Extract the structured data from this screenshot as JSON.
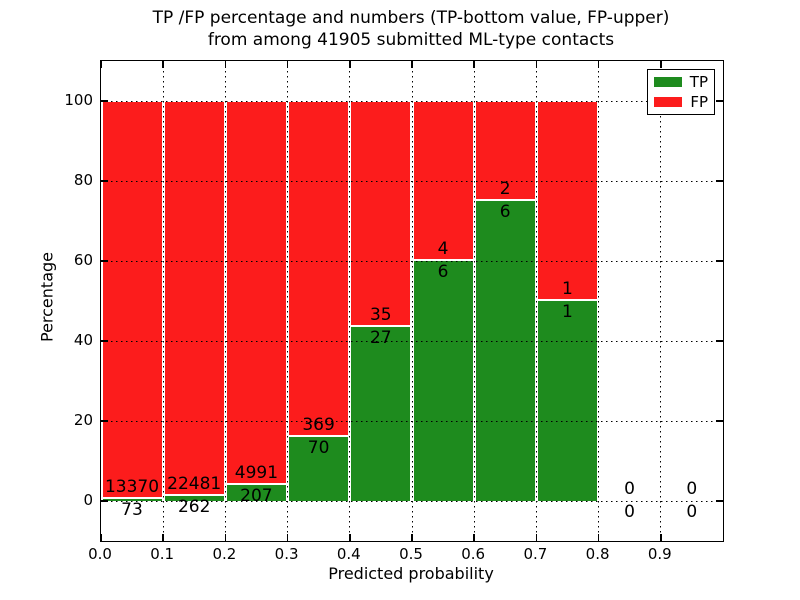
{
  "title": {
    "line1": "TP /FP percentage and numbers (TP-bottom value, FP-upper)",
    "line2": "from among 41905 submitted ML-type contacts"
  },
  "axes": {
    "xlabel": "Predicted probability",
    "ylabel": "Percentage",
    "x_tick_labels": [
      "0.0",
      "0.1",
      "0.2",
      "0.3",
      "0.4",
      "0.5",
      "0.6",
      "0.7",
      "0.8",
      "0.9"
    ],
    "x_tick_values": [
      0.0,
      0.1,
      0.2,
      0.3,
      0.4,
      0.5,
      0.6,
      0.7,
      0.8,
      0.9
    ],
    "y_tick_labels": [
      "0",
      "20",
      "40",
      "60",
      "80",
      "100"
    ],
    "y_tick_values": [
      0,
      20,
      40,
      60,
      80,
      100
    ]
  },
  "colors": {
    "tp": "#1e8b1e",
    "fp": "#fc1c1c",
    "grid": "#000000",
    "background": "#ffffff"
  },
  "legend": {
    "position": "upper right",
    "items": [
      {
        "label": "TP",
        "color_key": "tp"
      },
      {
        "label": "FP",
        "color_key": "fp"
      }
    ]
  },
  "chart_data": {
    "type": "bar",
    "stacked": true,
    "normalized_to_percent": true,
    "title": "TP /FP percentage and numbers (TP-bottom value, FP-upper) from among 41905 submitted ML-type contacts",
    "xlabel": "Predicted probability",
    "ylabel": "Percentage",
    "total_contacts": 41905,
    "bin_starts": [
      0.0,
      0.1,
      0.2,
      0.3,
      0.4,
      0.5,
      0.6,
      0.7,
      0.8,
      0.9
    ],
    "bin_width": 0.1,
    "series": [
      {
        "name": "TP",
        "counts": [
          73,
          262,
          207,
          70,
          27,
          6,
          6,
          1,
          0,
          0
        ]
      },
      {
        "name": "FP",
        "counts": [
          13370,
          22481,
          4991,
          369,
          35,
          4,
          2,
          1,
          0,
          0
        ]
      }
    ],
    "tp_percent": [
      0.54,
      1.15,
      3.98,
      15.95,
      43.55,
      60.0,
      75.0,
      50.0,
      0,
      0
    ],
    "xlim": [
      0.0,
      1.0
    ],
    "ylim": [
      -10,
      110
    ],
    "grid": "dotted",
    "annotation_rule": "FP count above TP/FP boundary, TP count below boundary",
    "legend_position": "upper right"
  }
}
